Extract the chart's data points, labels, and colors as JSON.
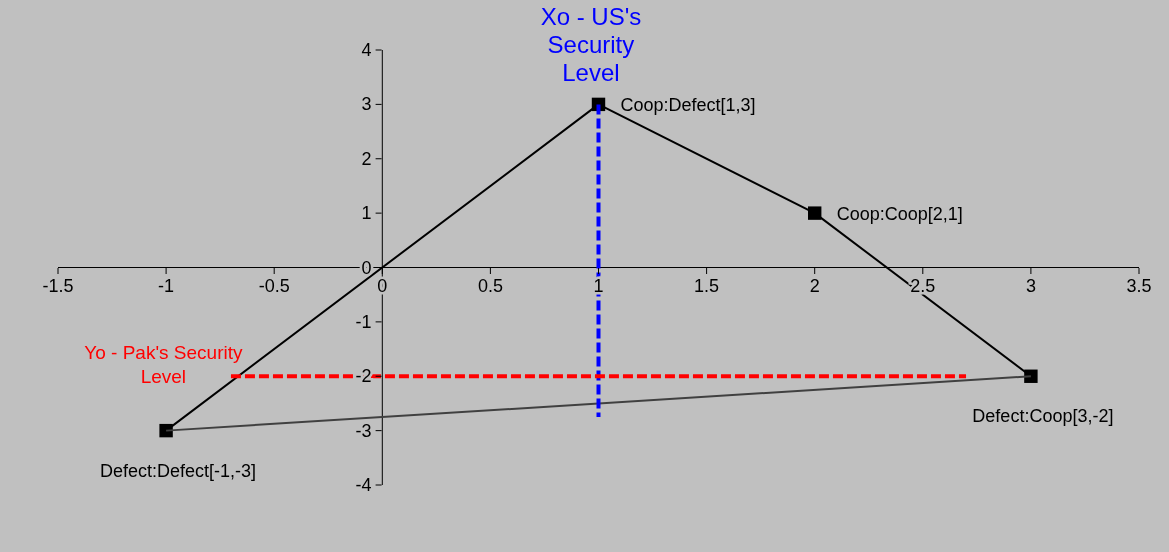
{
  "chart_data": {
    "type": "line",
    "xlim": [
      -1.5,
      3.5
    ],
    "xticks": [
      -1.5,
      -1,
      -0.5,
      0,
      0.5,
      1,
      1.5,
      2,
      2.5,
      3,
      3.5
    ],
    "ylim": [
      -4,
      4
    ],
    "yticks": [
      -4,
      -3,
      -2,
      -1,
      0,
      1,
      2,
      3,
      4
    ],
    "grid": false,
    "legend": false,
    "marker": "square",
    "series": [
      {
        "color": "#000000",
        "x": [
          -1,
          1,
          2,
          3
        ],
        "values": [
          -3,
          3,
          1,
          -2
        ]
      },
      {
        "color": "#404040",
        "marker": "none",
        "x": [
          3,
          -1
        ],
        "values": [
          -2,
          -3
        ]
      },
      {
        "name": "Xo - US's Security Level",
        "color": "#0000ff",
        "line_style": "dashed",
        "marker": "none",
        "x": [
          1,
          1
        ],
        "values": [
          3,
          -2.75
        ]
      },
      {
        "name": "Yo - Pak's Security Level",
        "color": "#ff0000",
        "line_style": "dashed",
        "marker": "none",
        "x": [
          -0.7,
          2.7
        ],
        "values": [
          -2,
          -2
        ]
      }
    ],
    "annotations": [
      {
        "text": "Coop:Defect[1,3]",
        "x": 1,
        "y": 3
      },
      {
        "text": "Coop:Coop[2,1]",
        "x": 2,
        "y": 1
      },
      {
        "text": "Defect:Coop[3,-2]",
        "x": 3,
        "y": -2
      },
      {
        "text": "Defect:Defect[-1,-3]",
        "x": -1,
        "y": -3
      }
    ]
  }
}
